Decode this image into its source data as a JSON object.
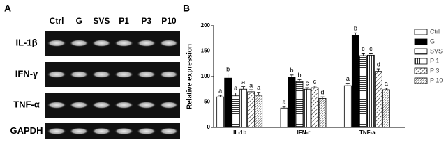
{
  "panel_a": {
    "label": "A",
    "lanes": [
      "Ctrl",
      "G",
      "SVS",
      "P1",
      "P3",
      "P10"
    ],
    "genes": [
      "IL-1β",
      "IFN-γ",
      "TNF-α",
      "GAPDH"
    ]
  },
  "chart_data": {
    "type": "bar",
    "panel_label": "B",
    "y_label": "Relative expression",
    "categories": [
      "IL-1b",
      "IFN-r",
      "TNF-a"
    ],
    "ylim": [
      0,
      200
    ],
    "yticks": [
      0,
      50,
      100,
      150,
      200
    ],
    "series": [
      {
        "name": "Ctrl",
        "color": "#ffffff",
        "pattern": "none",
        "values": [
          60,
          38,
          82
        ],
        "errors": [
          3,
          3,
          5
        ],
        "letters": [
          "a",
          "a",
          "a"
        ]
      },
      {
        "name": "G",
        "color": "#000000",
        "pattern": "solid",
        "values": [
          97,
          99,
          181
        ],
        "errors": [
          8,
          4,
          5
        ],
        "letters": [
          "b",
          "b",
          "b"
        ]
      },
      {
        "name": "SVS",
        "color": "#ffffff",
        "pattern": "horizontal",
        "values": [
          62,
          90,
          141
        ],
        "errors": [
          6,
          4,
          5
        ],
        "letters": [
          "a",
          "b",
          "c"
        ]
      },
      {
        "name": "P 1",
        "color": "#ffffff",
        "pattern": "vertical",
        "values": [
          75,
          75,
          142
        ],
        "errors": [
          5,
          3,
          4
        ],
        "letters": [
          "a",
          "c",
          "c"
        ]
      },
      {
        "name": "P 3",
        "color": "#ffffff",
        "pattern": "diagonal",
        "values": [
          70,
          78,
          110
        ],
        "errors": [
          4,
          3,
          5
        ],
        "letters": [
          "a",
          "c",
          "d"
        ]
      },
      {
        "name": "P 10",
        "color": "#ffffff",
        "pattern": "diagonal-dense",
        "values": [
          63,
          57,
          74
        ],
        "errors": [
          6,
          3,
          3
        ],
        "letters": [
          "a",
          "d",
          "a"
        ]
      }
    ]
  }
}
